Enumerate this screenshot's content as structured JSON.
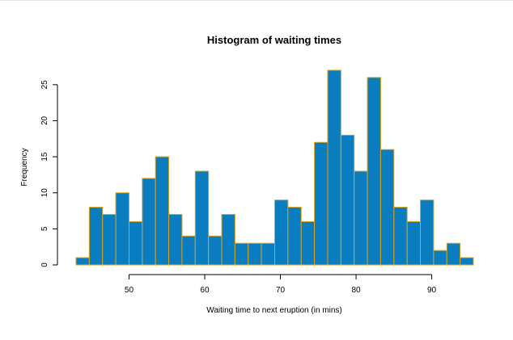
{
  "chart_data": {
    "type": "bar",
    "title": "Histogram of waiting times",
    "xlabel": "Waiting time to next eruption (in mins)",
    "ylabel": "Frequency",
    "bin_start": 43,
    "bin_width": 1.75,
    "values": [
      1,
      8,
      7,
      10,
      6,
      12,
      15,
      7,
      4,
      13,
      4,
      7,
      3,
      3,
      3,
      9,
      8,
      6,
      17,
      27,
      18,
      13,
      26,
      16,
      8,
      6,
      9,
      2,
      3,
      1
    ],
    "xlim": [
      43,
      95.5
    ],
    "ylim": [
      0,
      27
    ],
    "xticks": [
      50,
      60,
      70,
      80,
      90
    ],
    "yticks": [
      0,
      5,
      10,
      15,
      20,
      25
    ],
    "bar_fill": "#0a7cc0",
    "bar_edge": "#d8a31c"
  }
}
